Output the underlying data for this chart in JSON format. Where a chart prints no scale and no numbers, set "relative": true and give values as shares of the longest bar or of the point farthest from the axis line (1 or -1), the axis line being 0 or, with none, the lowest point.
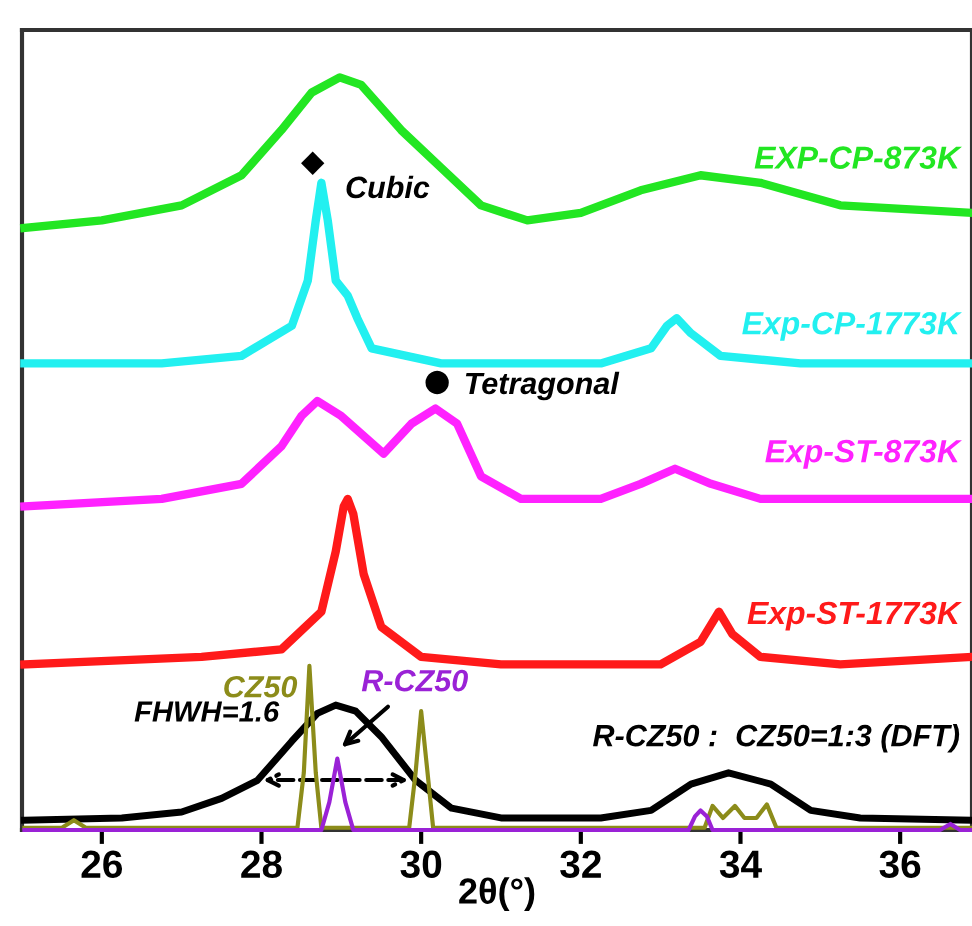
{
  "chart_data": {
    "type": "line",
    "relative": true,
    "xlabel": "2θ(°)",
    "xlim": [
      25,
      36.9
    ],
    "xticks": [
      26,
      28,
      30,
      32,
      34,
      36
    ],
    "grid": false,
    "marker": "none",
    "line_style": "solid",
    "series": [
      {
        "name": "EXP-CP-873K",
        "color": "#22e622",
        "x": [
          25.03,
          26,
          27,
          27.75,
          28.25,
          28.63,
          28.98,
          29.25,
          29.75,
          30.25,
          30.75,
          31.33,
          32,
          32.75,
          33.5,
          34.25,
          35.25,
          36.9
        ],
        "values": [
          0.8,
          0.81,
          0.83,
          0.87,
          0.93,
          0.98,
          1.0,
          0.99,
          0.93,
          0.88,
          0.83,
          0.81,
          0.82,
          0.85,
          0.87,
          0.86,
          0.83,
          0.82
        ]
      },
      {
        "name": "Exp-CP-1773K",
        "color": "#22f0f0",
        "x": [
          25.03,
          26.75,
          27.75,
          28.38,
          28.58,
          28.68,
          28.75,
          28.83,
          28.93,
          29.08,
          29.2,
          29.38,
          30.25,
          32.25,
          32.88,
          33.08,
          33.2,
          33.38,
          33.75,
          34.75,
          36.9
        ],
        "values": [
          0.62,
          0.62,
          0.63,
          0.67,
          0.73,
          0.81,
          0.86,
          0.81,
          0.73,
          0.71,
          0.68,
          0.64,
          0.62,
          0.62,
          0.64,
          0.67,
          0.68,
          0.66,
          0.63,
          0.62,
          0.62
        ]
      },
      {
        "name": "Exp-ST-873K",
        "color": "#ff22ff",
        "x": [
          25.03,
          26.75,
          27.75,
          28.25,
          28.5,
          28.7,
          29,
          29.53,
          29.88,
          30.18,
          30.45,
          30.75,
          31.25,
          32.25,
          32.75,
          33.18,
          33.63,
          34.25,
          36.9
        ],
        "values": [
          0.43,
          0.44,
          0.46,
          0.51,
          0.55,
          0.57,
          0.55,
          0.5,
          0.54,
          0.56,
          0.54,
          0.47,
          0.44,
          0.44,
          0.46,
          0.48,
          0.46,
          0.44,
          0.44
        ]
      },
      {
        "name": "Exp-ST-1773K",
        "color": "#ff1a1a",
        "x": [
          25.03,
          27.25,
          28.25,
          28.75,
          28.93,
          29.03,
          29.08,
          29.15,
          29.28,
          29.5,
          30,
          31,
          33,
          33.5,
          33.73,
          33.9,
          34.25,
          35.25,
          36.9
        ],
        "values": [
          0.22,
          0.23,
          0.24,
          0.29,
          0.37,
          0.43,
          0.44,
          0.42,
          0.34,
          0.27,
          0.23,
          0.22,
          0.22,
          0.25,
          0.29,
          0.26,
          0.23,
          0.22,
          0.23
        ]
      },
      {
        "name": "R-CZ50 :  CZ50=1:3 (DFT)",
        "color": "#000000",
        "x": [
          25.03,
          26.25,
          27,
          27.5,
          27.95,
          28.38,
          28.7,
          28.93,
          29.18,
          29.5,
          29.93,
          30.38,
          31,
          32.25,
          32.88,
          33.38,
          33.85,
          34.38,
          34.88,
          35.5,
          36.9
        ],
        "values": [
          0.013,
          0.016,
          0.024,
          0.042,
          0.066,
          0.118,
          0.155,
          0.166,
          0.158,
          0.124,
          0.066,
          0.029,
          0.016,
          0.016,
          0.026,
          0.061,
          0.076,
          0.061,
          0.026,
          0.016,
          0.013
        ]
      },
      {
        "name": "CZ50",
        "color": "#8c8c1a",
        "x": [
          25.03,
          25.5,
          25.65,
          25.8,
          28.45,
          28.53,
          28.6,
          28.68,
          28.75,
          29.85,
          29.93,
          30,
          30.08,
          30.15,
          33.55,
          33.65,
          33.78,
          33.93,
          34.05,
          34.2,
          34.33,
          34.45,
          36.9
        ],
        "values": [
          0.003,
          0.003,
          0.013,
          0.003,
          0.003,
          0.076,
          0.218,
          0.076,
          0.003,
          0.003,
          0.076,
          0.158,
          0.076,
          0.003,
          0.003,
          0.032,
          0.016,
          0.032,
          0.016,
          0.016,
          0.034,
          0.003,
          0.003
        ]
      },
      {
        "name": "R-CZ50",
        "color": "#9a22d6",
        "x": [
          25.03,
          28.75,
          28.85,
          28.95,
          29.05,
          29.15,
          33.35,
          33.43,
          33.5,
          33.58,
          33.65,
          36.5,
          36.63,
          36.75,
          36.9
        ],
        "values": [
          0,
          0,
          0.037,
          0.095,
          0.037,
          0,
          0,
          0.018,
          0.026,
          0.018,
          0,
          0,
          0.008,
          0,
          0
        ]
      }
    ],
    "annotations": [
      "◆",
      "Cubic",
      "●",
      "Tetragonal",
      "FHWH=1.6"
    ]
  }
}
